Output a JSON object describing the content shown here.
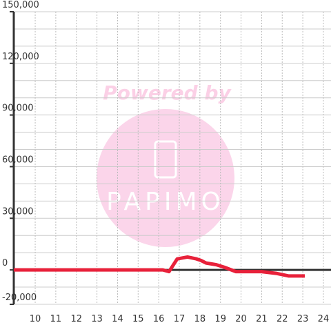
{
  "chart_data": {
    "type": "line",
    "watermark": {
      "title": "Powered by",
      "brand": "PAPIMO"
    },
    "x": [
      8.96,
      16.2,
      16.5,
      16.9,
      17.4,
      17.8,
      18.05,
      18.3,
      18.8,
      19.2,
      19.75,
      21,
      21.7,
      22.3,
      23.1
    ],
    "series": [
      {
        "color": "#e8213a",
        "values": [
          0,
          0,
          -1000,
          6400,
          7500,
          6500,
          5500,
          4000,
          3000,
          1500,
          -1000,
          -1000,
          -2000,
          -3500,
          -3500
        ]
      }
    ],
    "xlim": [
      8.96,
      24.37
    ],
    "xticks": [
      10,
      11,
      12,
      13,
      14,
      15,
      16,
      17,
      18,
      19,
      20,
      21,
      22,
      23,
      24
    ],
    "ylim": [
      -20000,
      150000
    ],
    "yticks": [
      {
        "value": -20000,
        "label": "-20,000"
      },
      0,
      {
        "value": 30000,
        "label": "30,000"
      },
      {
        "value": 60000,
        "label": "60,000"
      },
      {
        "value": 90000,
        "label": "90,000"
      },
      {
        "value": 120000,
        "label": "120,000"
      },
      {
        "value": 150000,
        "label": "150,000"
      }
    ],
    "minor_grid_step": 10000,
    "grid": true
  }
}
